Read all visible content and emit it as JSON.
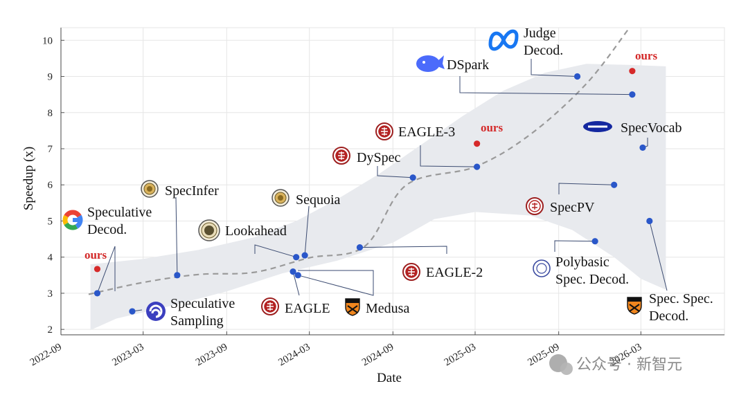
{
  "chart_data": {
    "type": "scatter",
    "xlabel": "Date",
    "ylabel": "Speedup (x)",
    "ylim": [
      1.85,
      10.35
    ],
    "xlim": [
      "2022-09",
      "2026-09"
    ],
    "grid": true,
    "x_ticks": [
      "2022-09",
      "2023-03",
      "2023-09",
      "2024-03",
      "2024-09",
      "2025-03",
      "2025-09",
      "2026-03"
    ],
    "y_ticks": [
      2,
      3,
      4,
      5,
      6,
      7,
      8,
      9,
      10
    ],
    "band_upper": [
      {
        "x": "2022-11-05",
        "y": 3.8
      },
      {
        "x": "2023-03-01",
        "y": 3.95
      },
      {
        "x": "2023-07-01",
        "y": 4.2
      },
      {
        "x": "2023-11-01",
        "y": 4.55
      },
      {
        "x": "2024-02-01",
        "y": 5.0
      },
      {
        "x": "2024-05-01",
        "y": 5.6
      },
      {
        "x": "2024-08-01",
        "y": 6.3
      },
      {
        "x": "2024-11-01",
        "y": 7.1
      },
      {
        "x": "2025-02-01",
        "y": 7.9
      },
      {
        "x": "2025-05-01",
        "y": 8.6
      },
      {
        "x": "2025-08-01",
        "y": 9.1
      },
      {
        "x": "2025-11-01",
        "y": 9.35
      },
      {
        "x": "2026-02-01",
        "y": 9.32
      },
      {
        "x": "2026-04-25",
        "y": 9.28
      }
    ],
    "band_lower": [
      {
        "x": "2026-04-25",
        "y": 3.1
      },
      {
        "x": "2026-03-01",
        "y": 3.4
      },
      {
        "x": "2026-01-01",
        "y": 4.0
      },
      {
        "x": "2025-10-01",
        "y": 4.75
      },
      {
        "x": "2025-07-01",
        "y": 5.15
      },
      {
        "x": "2025-03-01",
        "y": 5.25
      },
      {
        "x": "2024-12-01",
        "y": 5.05
      },
      {
        "x": "2024-09-01",
        "y": 4.4
      },
      {
        "x": "2024-05-01",
        "y": 3.9
      },
      {
        "x": "2024-01-01",
        "y": 3.55
      },
      {
        "x": "2023-09-01",
        "y": 3.05
      },
      {
        "x": "2023-05-01",
        "y": 2.65
      },
      {
        "x": "2023-01-01",
        "y": 2.3
      },
      {
        "x": "2022-11-05",
        "y": 1.98
      }
    ],
    "trend": [
      {
        "x": "2022-11-01",
        "y": 2.97
      },
      {
        "x": "2023-03-01",
        "y": 3.3
      },
      {
        "x": "2023-07-01",
        "y": 3.52
      },
      {
        "x": "2023-11-01",
        "y": 3.58
      },
      {
        "x": "2024-03-01",
        "y": 3.98
      },
      {
        "x": "2024-07-01",
        "y": 4.3
      },
      {
        "x": "2024-10-01",
        "y": 6.0
      },
      {
        "x": "2025-03-01",
        "y": 6.5
      },
      {
        "x": "2025-07-01",
        "y": 7.4
      },
      {
        "x": "2025-11-01",
        "y": 8.8
      },
      {
        "x": "2026-02-01",
        "y": 10.3
      }
    ],
    "points": [
      {
        "name": "Speculative Decod.",
        "lines": [
          "Speculative",
          "Decod."
        ],
        "logo": "google",
        "x": "2022-11-20",
        "y": 3.0
      },
      {
        "name": "ours",
        "ours": true,
        "x": "2022-11-20",
        "y": 3.67
      },
      {
        "name": "Speculative Sampling",
        "lines": [
          "Speculative",
          "Sampling"
        ],
        "logo": "deepmind",
        "x": "2023-02-05",
        "y": 2.5
      },
      {
        "name": "SpecInfer",
        "lines": [
          "SpecInfer"
        ],
        "logo": "cmu",
        "x": "2023-05-15",
        "y": 3.5
      },
      {
        "name": "Lookahead",
        "lines": [
          "Lookahead"
        ],
        "logo": "lmsys",
        "x": "2024-02-01",
        "y": 4.0
      },
      {
        "name": "Sequoia",
        "lines": [
          "Sequoia"
        ],
        "logo": "cmu",
        "x": "2024-02-20",
        "y": 4.05
      },
      {
        "name": "EAGLE",
        "lines": [
          "EAGLE"
        ],
        "logo": "pku",
        "x": "2024-01-25",
        "y": 3.6
      },
      {
        "name": "Medusa",
        "lines": [
          "Medusa"
        ],
        "logo": "princeton",
        "x": "2024-02-05",
        "y": 3.5
      },
      {
        "name": "EAGLE-2",
        "lines": [
          "EAGLE-2"
        ],
        "logo": "pku",
        "x": "2024-06-20",
        "y": 4.27
      },
      {
        "name": "DySpec",
        "lines": [
          "DySpec"
        ],
        "logo": "pku",
        "x": "2024-10-15",
        "y": 6.2
      },
      {
        "name": "EAGLE-3",
        "lines": [
          "EAGLE-3"
        ],
        "logo": "pku",
        "x": "2025-03-05",
        "y": 6.5
      },
      {
        "name": "ours",
        "ours": true,
        "x": "2025-03-05",
        "y": 7.14
      },
      {
        "name": "DSpark",
        "lines": [
          "DSpark"
        ],
        "logo": "deepseek",
        "x": "2026-02-10",
        "y": 8.5
      },
      {
        "name": "Judge Decod.",
        "lines": [
          "Judge",
          "Decod."
        ],
        "logo": "meta",
        "x": "2025-10-12",
        "y": 9.0
      },
      {
        "name": "ours",
        "ours": true,
        "x": "2026-02-10",
        "y": 9.15
      },
      {
        "name": "SpecVocab",
        "lines": [
          "SpecVocab"
        ],
        "logo": "samsung",
        "x": "2026-03-05",
        "y": 7.03
      },
      {
        "name": "SpecPV",
        "lines": [
          "SpecPV"
        ],
        "logo": "redseal",
        "x": "2026-01-01",
        "y": 6.0
      },
      {
        "name": "Polybasic Spec. Decod.",
        "lines": [
          "Polybasic",
          "Spec. Decod."
        ],
        "logo": "blueseal",
        "x": "2025-11-20",
        "y": 4.44
      },
      {
        "name": "Spec. Spec. Decod.",
        "lines": [
          "Spec. Spec.",
          "Decod."
        ],
        "logo": "princeton",
        "x": "2026-03-20",
        "y": 5.0
      }
    ],
    "logos": {
      "google": "google-g",
      "deepmind": "deepmind-swirl",
      "cmu": "university-seal",
      "lmsys": "lmsys-seal",
      "pku": "peking-university-seal",
      "princeton": "princeton-shield",
      "deepseek": "deepseek-whale",
      "meta": "meta-infinity",
      "samsung": "samsung-wordmark",
      "redseal": "red-university-seal",
      "blueseal": "blue-university-seal"
    },
    "colors": {
      "point": "#2a57c9",
      "ours": "#d62a2a",
      "band": "#e8eaee",
      "trend": "#9a9a9a",
      "leader": "#3a4a70"
    }
  },
  "watermark": "公众号 · 新智元"
}
